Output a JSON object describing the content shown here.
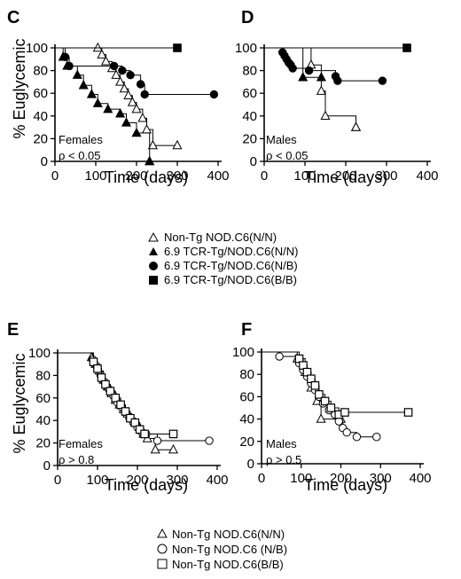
{
  "panels": [
    {
      "letter": "C",
      "group": "Females",
      "pvalue": "ρ < 0.05",
      "xlabel": "Time (days)",
      "ylabel": "% Euglycemic",
      "xticks": [
        "0",
        "100",
        "200",
        "300",
        "400"
      ],
      "yticks": [
        "0",
        "20",
        "40",
        "60",
        "80",
        "100"
      ]
    },
    {
      "letter": "D",
      "group": "Males",
      "pvalue": "ρ < 0.05",
      "xlabel": "Time (days)",
      "ylabel": "",
      "xticks": [
        "0",
        "100",
        "200",
        "300",
        "400"
      ],
      "yticks": [
        "0",
        "20",
        "40",
        "60",
        "80",
        "100"
      ]
    },
    {
      "letter": "E",
      "group": "Females",
      "pvalue": "ρ > 0.8",
      "xlabel": "Time (days)",
      "ylabel": "% Euglycemic",
      "xticks": [
        "0",
        "100",
        "200",
        "300",
        "400"
      ],
      "yticks": [
        "0",
        "20",
        "40",
        "60",
        "80",
        "100"
      ]
    },
    {
      "letter": "F",
      "group": "Males",
      "pvalue": "ρ > 0.5",
      "xlabel": "Time (days)",
      "ylabel": "",
      "xticks": [
        "0",
        "100",
        "200",
        "300",
        "400"
      ],
      "yticks": [
        "0",
        "20",
        "40",
        "60",
        "80",
        "100"
      ]
    }
  ],
  "legend_top": [
    {
      "marker": "open-triangle",
      "label": "Non-Tg NOD.C6(N/N)"
    },
    {
      "marker": "filled-triangle",
      "label": "6.9 TCR-Tg/NOD.C6(N/N)"
    },
    {
      "marker": "filled-circle",
      "label": "6.9 TCR-Tg/NOD.C6(N/B)"
    },
    {
      "marker": "filled-square",
      "label": "6.9 TCR-Tg/NOD.C6(B/B)"
    }
  ],
  "legend_bottom": [
    {
      "marker": "open-triangle",
      "label": "Non-Tg NOD.C6(N/N)"
    },
    {
      "marker": "open-circle",
      "label": "Non-Tg NOD.C6 (N/B)"
    },
    {
      "marker": "open-square",
      "label": "Non-Tg NOD.C6(B/B)"
    }
  ],
  "chart_data": [
    {
      "type": "line",
      "panel": "C",
      "step": true,
      "xlabel": "Time (days)",
      "ylabel": "% Euglycemic",
      "xlim": [
        0,
        400
      ],
      "ylim": [
        0,
        100
      ],
      "series": [
        {
          "name": "Non-Tg NOD.C6(N/N)",
          "marker": "open-triangle",
          "x": [
            0,
            105,
            115,
            125,
            140,
            150,
            160,
            170,
            180,
            190,
            200,
            215,
            225,
            240,
            300
          ],
          "y": [
            100,
            100,
            94,
            88,
            82,
            76,
            70,
            64,
            58,
            52,
            46,
            38,
            28,
            14,
            14
          ]
        },
        {
          "name": "6.9 TCR-Tg/NOD.C6(N/N)",
          "marker": "filled-triangle",
          "x": [
            0,
            20,
            30,
            55,
            70,
            90,
            105,
            130,
            160,
            175,
            200,
            232,
            232
          ],
          "y": [
            100,
            92,
            84,
            76,
            67,
            59,
            51,
            46,
            42,
            34,
            25,
            0,
            0
          ]
        },
        {
          "name": "6.9 TCR-Tg/NOD.C6(N/B)",
          "marker": "filled-circle",
          "x": [
            0,
            25,
            35,
            145,
            165,
            185,
            210,
            220,
            390
          ],
          "y": [
            100,
            92,
            84,
            84,
            80,
            76,
            68,
            59,
            59
          ]
        },
        {
          "name": "6.9 TCR-Tg/NOD.C6(B/B)",
          "marker": "filled-square",
          "x": [
            0,
            300,
            300
          ],
          "y": [
            100,
            100,
            100
          ]
        }
      ]
    },
    {
      "type": "line",
      "panel": "D",
      "step": true,
      "xlabel": "Time (days)",
      "ylabel": "% Euglycemic",
      "xlim": [
        0,
        400
      ],
      "ylim": [
        0,
        100
      ],
      "series": [
        {
          "name": "Non-Tg NOD.C6(N/N)",
          "marker": "open-triangle",
          "x": [
            0,
            115,
            140,
            150,
            225,
            225
          ],
          "y": [
            100,
            85,
            62,
            40,
            30,
            30
          ]
        },
        {
          "name": "6.9 TCR-Tg/NOD.C6(N/N)",
          "marker": "filled-triangle",
          "x": [
            0,
            95,
            140
          ],
          "y": [
            100,
            74,
            74
          ]
        },
        {
          "name": "6.9 TCR-Tg/NOD.C6(N/B)",
          "marker": "filled-circle",
          "x": [
            0,
            45,
            50,
            55,
            60,
            65,
            70,
            110,
            175,
            180,
            290
          ],
          "y": [
            100,
            96,
            93,
            90,
            87,
            85,
            82,
            80,
            75,
            71,
            71
          ]
        },
        {
          "name": "6.9 TCR-Tg/NOD.C6(B/B)",
          "marker": "filled-square",
          "x": [
            0,
            350,
            350
          ],
          "y": [
            100,
            100,
            100
          ]
        }
      ]
    },
    {
      "type": "line",
      "panel": "E",
      "step": true,
      "xlabel": "Time (days)",
      "ylabel": "% Euglycemic",
      "xlim": [
        0,
        400
      ],
      "ylim": [
        0,
        100
      ],
      "series": [
        {
          "name": "Non-Tg NOD.C6(N/N)",
          "marker": "open-triangle",
          "x": [
            0,
            85,
            95,
            105,
            115,
            125,
            135,
            145,
            155,
            165,
            175,
            185,
            195,
            205,
            215,
            225,
            245,
            290
          ],
          "y": [
            100,
            96,
            90,
            84,
            76,
            70,
            64,
            58,
            54,
            50,
            46,
            42,
            38,
            34,
            28,
            24,
            14,
            14
          ]
        },
        {
          "name": "Non-Tg NOD.C6 (N/B)",
          "marker": "open-circle",
          "x": [
            0,
            88,
            98,
            108,
            118,
            128,
            140,
            150,
            160,
            170,
            180,
            190,
            200,
            210,
            222,
            250,
            380
          ],
          "y": [
            100,
            94,
            88,
            80,
            74,
            68,
            62,
            56,
            52,
            48,
            42,
            38,
            34,
            30,
            28,
            22,
            22
          ]
        },
        {
          "name": "Non-Tg NOD.C6(B/B)",
          "marker": "open-square",
          "x": [
            0,
            90,
            100,
            110,
            120,
            132,
            145,
            158,
            170,
            182,
            194,
            206,
            218,
            290
          ],
          "y": [
            100,
            92,
            86,
            78,
            72,
            66,
            60,
            54,
            48,
            42,
            38,
            32,
            28,
            28
          ]
        }
      ]
    },
    {
      "type": "line",
      "panel": "F",
      "step": true,
      "xlabel": "Time (days)",
      "ylabel": "% Euglycemic",
      "xlim": [
        0,
        400
      ],
      "ylim": [
        0,
        100
      ],
      "series": [
        {
          "name": "Non-Tg NOD.C6(N/N)",
          "marker": "open-triangle",
          "x": [
            0,
            90,
            110,
            125,
            140,
            150,
            200
          ],
          "y": [
            100,
            94,
            82,
            68,
            56,
            40,
            40
          ]
        },
        {
          "name": "Non-Tg NOD.C6 (N/B)",
          "marker": "open-circle",
          "x": [
            0,
            45,
            95,
            105,
            115,
            125,
            135,
            145,
            155,
            170,
            185,
            195,
            205,
            215,
            240,
            290
          ],
          "y": [
            100,
            96,
            90,
            84,
            78,
            72,
            66,
            60,
            54,
            48,
            44,
            38,
            32,
            28,
            24,
            24
          ]
        },
        {
          "name": "Non-Tg NOD.C6(B/B)",
          "marker": "open-square",
          "x": [
            0,
            95,
            105,
            115,
            125,
            135,
            145,
            160,
            175,
            195,
            210,
            370
          ],
          "y": [
            100,
            94,
            88,
            82,
            76,
            70,
            62,
            56,
            50,
            44,
            46,
            46
          ]
        }
      ]
    }
  ]
}
